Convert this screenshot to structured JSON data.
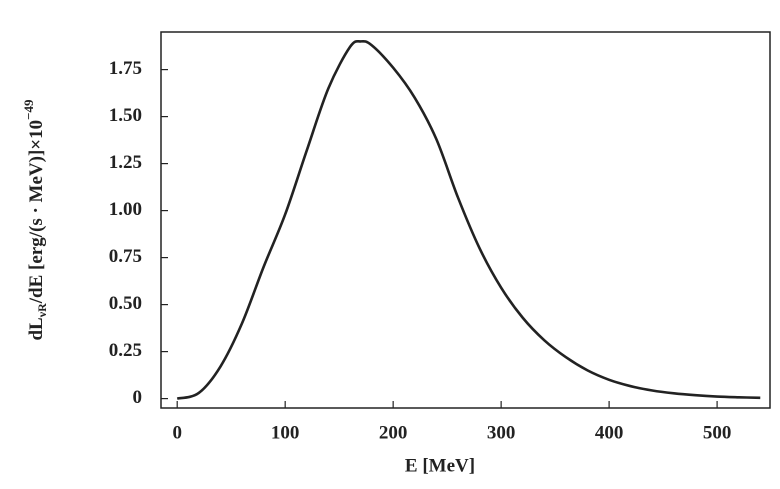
{
  "chart_data": {
    "type": "line",
    "x_label": "E [MeV]",
    "y_label": {
      "main": "dL",
      "sub": "νR",
      "rest": "/dE [erg/(s · MeV)]×10",
      "sup": "−49"
    },
    "x": [
      0,
      20,
      40,
      60,
      80,
      100,
      120,
      140,
      160,
      170,
      180,
      200,
      220,
      240,
      260,
      280,
      300,
      320,
      340,
      360,
      380,
      400,
      420,
      440,
      460,
      480,
      500,
      520,
      540
    ],
    "series": [
      {
        "color": "#222222",
        "values": [
          0,
          0.03,
          0.17,
          0.4,
          0.7,
          0.98,
          1.32,
          1.65,
          1.87,
          1.9,
          1.88,
          1.76,
          1.6,
          1.38,
          1.07,
          0.8,
          0.59,
          0.43,
          0.31,
          0.22,
          0.15,
          0.1,
          0.066,
          0.043,
          0.028,
          0.018,
          0.011,
          0.007,
          0.004
        ]
      }
    ],
    "xlim": [
      -15,
      549
    ],
    "ylim": [
      -0.05,
      1.95
    ],
    "xticks": [
      0,
      100,
      200,
      300,
      400,
      500
    ],
    "yticks": [
      0,
      0.25,
      {
        "value": 0.5,
        "label": "0.50"
      },
      0.75,
      {
        "value": 1,
        "label": "1.00"
      },
      1.25,
      {
        "value": 1.5,
        "label": "1.50"
      },
      1.75
    ],
    "grid": false
  }
}
